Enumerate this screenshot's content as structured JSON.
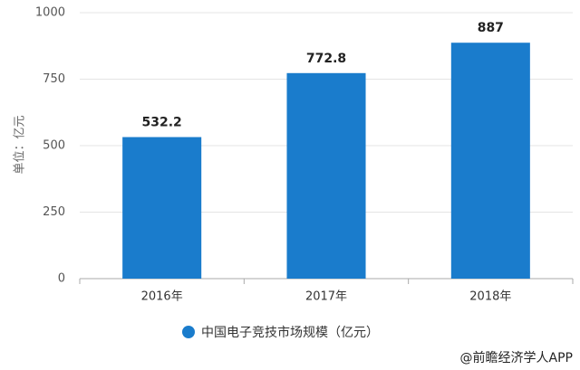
{
  "chart_data": {
    "type": "bar",
    "categories": [
      "2016年",
      "2017年",
      "2018年"
    ],
    "values": [
      532.2,
      772.8,
      887
    ],
    "color": "#1a7ccc",
    "ylabel": "单位：亿元",
    "legend": "中国电子竞技市场规模（亿元）",
    "watermark": "@前瞻经济学人APP",
    "ylim": [
      0,
      1000
    ],
    "yticks": [
      0,
      250,
      500,
      750,
      1000
    ],
    "grid": true
  }
}
